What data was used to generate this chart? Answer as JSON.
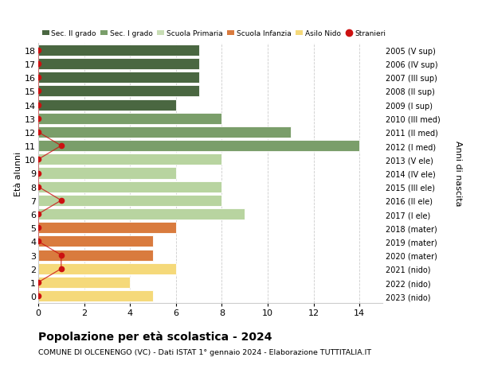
{
  "ages": [
    18,
    17,
    16,
    15,
    14,
    13,
    12,
    11,
    10,
    9,
    8,
    7,
    6,
    5,
    4,
    3,
    2,
    1,
    0
  ],
  "years": [
    "2005 (V sup)",
    "2006 (IV sup)",
    "2007 (III sup)",
    "2008 (II sup)",
    "2009 (I sup)",
    "2010 (III med)",
    "2011 (II med)",
    "2012 (I med)",
    "2013 (V ele)",
    "2014 (IV ele)",
    "2015 (III ele)",
    "2016 (II ele)",
    "2017 (I ele)",
    "2018 (mater)",
    "2019 (mater)",
    "2020 (mater)",
    "2021 (nido)",
    "2022 (nido)",
    "2023 (nido)"
  ],
  "bar_values": [
    7,
    7,
    7,
    7,
    6,
    8,
    11,
    14,
    8,
    6,
    8,
    8,
    9,
    6,
    5,
    5,
    6,
    4,
    5
  ],
  "bar_colors": [
    "#4a6741",
    "#4a6741",
    "#4a6741",
    "#4a6741",
    "#4a6741",
    "#7a9e6a",
    "#7a9e6a",
    "#7a9e6a",
    "#b8d4a0",
    "#b8d4a0",
    "#b8d4a0",
    "#b8d4a0",
    "#b8d4a0",
    "#d97b3e",
    "#d97b3e",
    "#d97b3e",
    "#f5d97a",
    "#f5d97a",
    "#f5d97a"
  ],
  "stranieri_values": [
    0,
    0,
    0,
    0,
    0,
    0,
    0,
    1,
    0,
    0,
    0,
    1,
    0,
    0,
    0,
    1,
    1,
    0,
    0
  ],
  "legend_labels": [
    "Sec. II grado",
    "Sec. I grado",
    "Scuola Primaria",
    "Scuola Infanzia",
    "Asilo Nido",
    "Stranieri"
  ],
  "legend_colors": [
    "#4a6741",
    "#7a9e6a",
    "#c8ddb4",
    "#d97b3e",
    "#f5d97a",
    "#cc1111"
  ],
  "title": "Popolazione per età scolastica - 2024",
  "subtitle": "COMUNE DI OLCENENGO (VC) - Dati ISTAT 1° gennaio 2024 - Elaborazione TUTTITALIA.IT",
  "ylabel_left": "Età alunni",
  "ylabel_right": "Anni di nascita",
  "xlim": [
    0,
    15
  ],
  "xticks": [
    0,
    2,
    4,
    6,
    8,
    10,
    12,
    14
  ],
  "background_color": "#ffffff",
  "grid_color": "#cccccc",
  "bar_height": 0.82
}
